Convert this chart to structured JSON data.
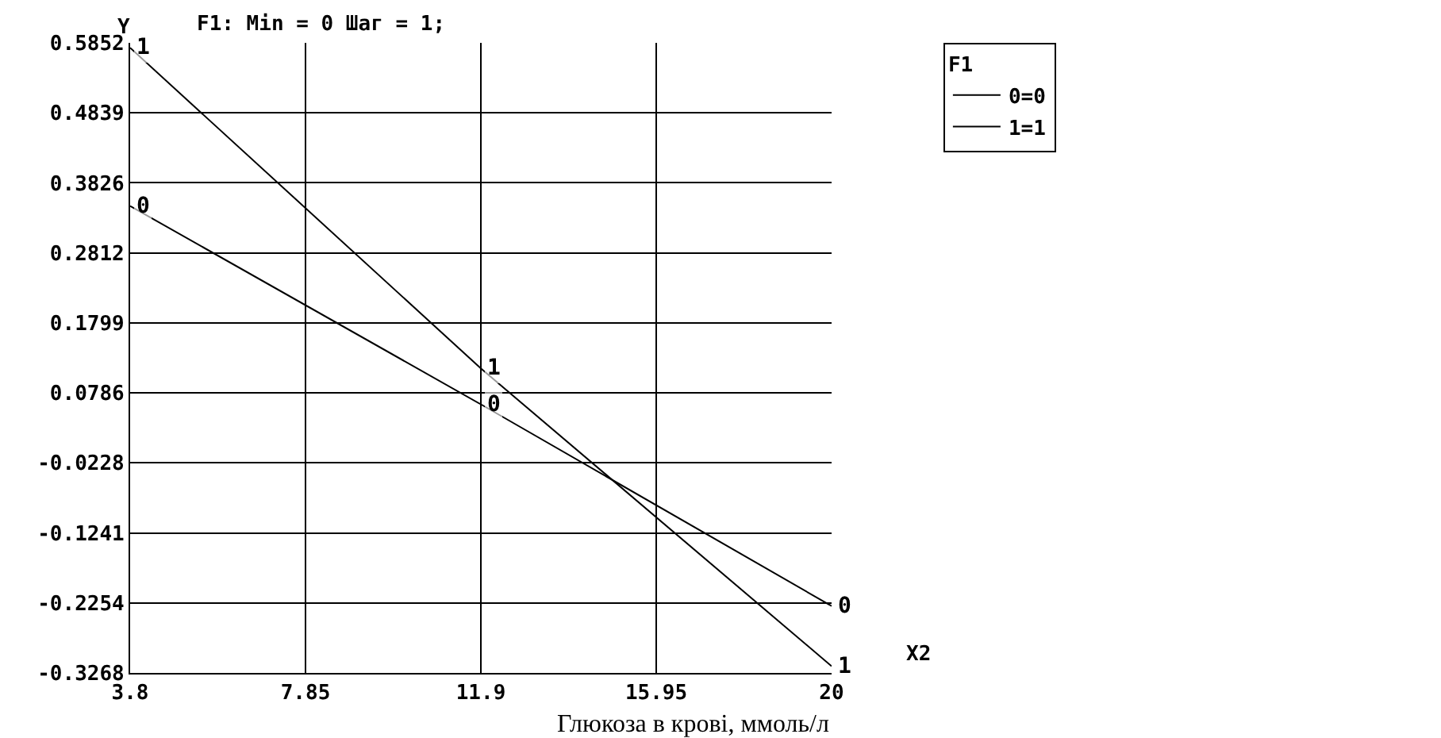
{
  "chart_data": {
    "type": "line",
    "title": "F1: Min = 0 Шаг = 1;",
    "xlabel": "X2",
    "ylabel": "Y",
    "legend_title": "F1",
    "x": [
      3.8,
      11.9,
      20
    ],
    "series": [
      {
        "name": "0=0",
        "color": "#000000",
        "values": [
          0.349,
          0.062,
          -0.23
        ]
      },
      {
        "name": "1=1",
        "color": "#000000",
        "values": [
          0.578,
          0.114,
          -0.317
        ]
      }
    ],
    "annotations": [
      {
        "text": "0",
        "x": 3.8,
        "y": 0.349
      },
      {
        "text": "0",
        "x": 11.9,
        "y": 0.062
      },
      {
        "text": "0",
        "x": 20,
        "y": -0.23
      },
      {
        "text": "1",
        "x": 3.8,
        "y": 0.578
      },
      {
        "text": "1",
        "x": 11.9,
        "y": 0.114
      },
      {
        "text": "1",
        "x": 20,
        "y": -0.317
      },
      "Глюкоза в крові, ммоль/л"
    ],
    "xlim": [
      3.8,
      20
    ],
    "xticks": [
      3.8,
      7.85,
      11.9,
      15.95,
      20
    ],
    "ylim": [
      -0.3268,
      0.5852
    ],
    "yticks": [
      -0.3268,
      -0.2254,
      -0.1241,
      -0.0228,
      0.0786,
      0.1799,
      0.2812,
      0.3826,
      0.4839,
      0.5852
    ],
    "grid": true,
    "legend": "top right",
    "marker": "none",
    "line_style": "solid"
  }
}
